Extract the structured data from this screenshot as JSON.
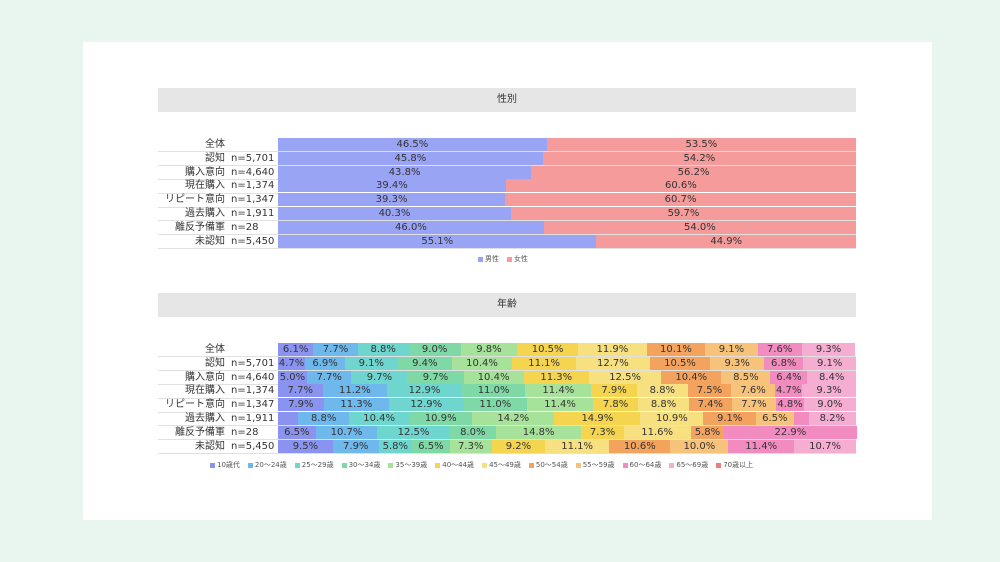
{
  "chart_data": [
    {
      "type": "bar",
      "stacked": true,
      "orientation": "horizontal",
      "title": "性別",
      "categories": [
        "全体",
        "認知",
        "購入意向",
        "現在購入",
        "リピート意向",
        "過去購入",
        "離反予備軍",
        "未認知"
      ],
      "n_labels": [
        "",
        "n=5,701",
        "n=4,640",
        "n=1,374",
        "n=1,347",
        "n=1,911",
        "n=28",
        "n=5,450"
      ],
      "series": [
        {
          "name": "男性",
          "color": "#99a4f5",
          "values": [
            46.5,
            45.8,
            43.8,
            39.4,
            39.3,
            40.3,
            46.0,
            55.1
          ]
        },
        {
          "name": "女性",
          "color": "#f59b9b",
          "values": [
            53.5,
            54.2,
            56.2,
            60.6,
            60.7,
            59.7,
            54.0,
            44.9
          ]
        }
      ],
      "value_suffix": "%",
      "xlim": [
        0,
        100
      ],
      "legend_position": "bottom"
    },
    {
      "type": "bar",
      "stacked": true,
      "orientation": "horizontal",
      "title": "年齢",
      "categories": [
        "全体",
        "認知",
        "購入意向",
        "現在購入",
        "リピート意向",
        "過去購入",
        "離反予備軍",
        "未認知"
      ],
      "n_labels": [
        "",
        "n=5,701",
        "n=4,640",
        "n=1,374",
        "n=1,347",
        "n=1,911",
        "n=28",
        "n=5,450"
      ],
      "series": [
        {
          "name": "10歳代",
          "color": "#8a93f0",
          "values": [
            6.1,
            4.7,
            5.0,
            7.7,
            7.9,
            3.5,
            6.5,
            9.5
          ]
        },
        {
          "name": "20～24歳",
          "color": "#6fb8ec",
          "values": [
            7.7,
            6.9,
            7.7,
            11.2,
            11.3,
            8.8,
            10.7,
            7.9
          ]
        },
        {
          "name": "25～29歳",
          "color": "#6fd6cf",
          "values": [
            8.8,
            9.1,
            9.7,
            12.9,
            12.9,
            10.4,
            12.5,
            5.8
          ]
        },
        {
          "name": "30～34歳",
          "color": "#7fd9a6",
          "values": [
            9.0,
            9.4,
            9.7,
            11.0,
            11.0,
            10.9,
            8.0,
            6.5
          ]
        },
        {
          "name": "35～39歳",
          "color": "#a6e29a",
          "values": [
            9.8,
            10.4,
            10.4,
            11.4,
            11.4,
            14.2,
            14.8,
            7.3
          ]
        },
        {
          "name": "40～44歳",
          "color": "#f5d54f",
          "values": [
            10.5,
            11.1,
            11.3,
            7.9,
            7.8,
            14.9,
            7.3,
            9.2
          ]
        },
        {
          "name": "45～49歳",
          "color": "#f7e080",
          "values": [
            11.9,
            12.7,
            12.5,
            8.8,
            8.8,
            10.9,
            11.6,
            11.1
          ]
        },
        {
          "name": "50～54歳",
          "color": "#f4a35f",
          "values": [
            10.1,
            10.5,
            10.4,
            7.5,
            7.4,
            9.1,
            5.8,
            10.6
          ]
        },
        {
          "name": "55～59歳",
          "color": "#f7c27a",
          "values": [
            9.1,
            9.3,
            8.5,
            7.6,
            7.7,
            6.5,
            0,
            10.0
          ]
        },
        {
          "name": "60～64歳",
          "color": "#f28bbf",
          "values": [
            7.6,
            6.8,
            6.4,
            4.7,
            4.8,
            2.6,
            22.9,
            11.4
          ]
        },
        {
          "name": "65～69歳",
          "color": "#f5aed2",
          "values": [
            9.3,
            9.1,
            8.4,
            9.3,
            9.0,
            8.2,
            0,
            10.7
          ]
        },
        {
          "name": "70歳以上",
          "color": "#f07a7a",
          "values": [
            0,
            0,
            0,
            0,
            0,
            0,
            0,
            0
          ]
        }
      ],
      "display_labels": [
        [
          "6.1%",
          "7.7%",
          "8.8%",
          "9.0%",
          "9.8%",
          "10.5%",
          "11.9%",
          "10.1%",
          "9.1%",
          "7.6%",
          "9.3%",
          ""
        ],
        [
          "4.7%",
          "6.9%",
          "9.1%",
          "9.4%",
          "10.4%",
          "11.1%",
          "12.7%",
          "10.5%",
          "9.3%",
          "6.8%",
          "9.1%",
          ""
        ],
        [
          "5.0%",
          "7.7%",
          "9.7%",
          "9.7%",
          "10.4%",
          "11.3%",
          "12.5%",
          "10.4%",
          "8.5%",
          "6.4%",
          "8.4%",
          ""
        ],
        [
          "7.7%",
          "11.2%",
          "12.9%",
          "11.0%",
          "11.4%",
          "7.9%",
          "8.8%",
          "7.5%",
          "7.6%",
          "4.7%",
          "9.3%",
          ""
        ],
        [
          "7.9%",
          "11.3%",
          "12.9%",
          "11.0%",
          "11.4%",
          "7.8%",
          "8.8%",
          "7.4%",
          "7.7%",
          "4.8%",
          "9.0%",
          ""
        ],
        [
          "",
          "8.8%",
          "10.4%",
          "10.9%",
          "14.2%",
          "14.9%",
          "10.9%",
          "9.1%",
          "6.5%",
          "",
          "8.2%",
          ""
        ],
        [
          "6.5%",
          "10.7%",
          "12.5%",
          "8.0%",
          "14.8%",
          "7.3%",
          "11.6%",
          "5.8%",
          "",
          "22.9%",
          "",
          ""
        ],
        [
          "9.5%",
          "7.9%",
          "5.8%",
          "6.5%",
          "7.3%",
          "9.2%",
          "11.1%",
          "10.6%",
          "10.0%",
          "11.4%",
          "10.7%",
          ""
        ]
      ],
      "value_suffix": "%",
      "xlim": [
        0,
        100
      ],
      "legend_position": "bottom"
    }
  ]
}
